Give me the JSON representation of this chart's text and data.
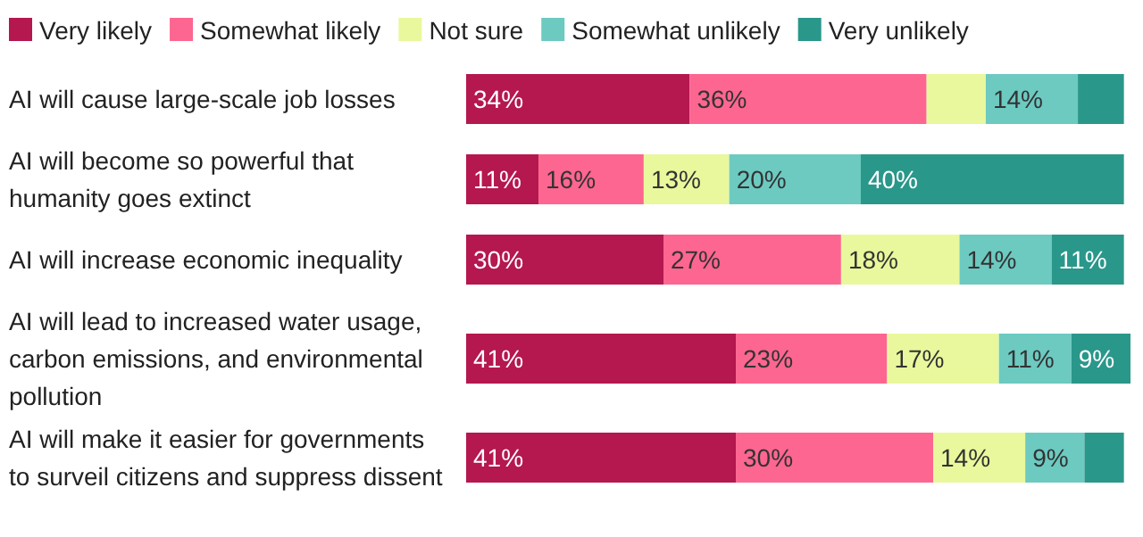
{
  "chart_data": {
    "type": "bar",
    "orientation": "horizontal",
    "stacked": true,
    "categories": [
      "AI will cause large-scale job losses",
      "AI will become so powerful that humanity goes extinct",
      "AI will increase economic inequality",
      "AI will lead to increased water usage, carbon emissions, and environmental pollution",
      "AI will make it easier for governments to surveil citizens and suppress dissent"
    ],
    "series": [
      {
        "name": "Very likely",
        "color": "#b5174f",
        "values": [
          34,
          11,
          30,
          41,
          41
        ],
        "value_labels": [
          "34%",
          "11%",
          "30%",
          "41%",
          "41%"
        ]
      },
      {
        "name": "Somewhat likely",
        "color": "#fd6690",
        "values": [
          36,
          16,
          27,
          23,
          30
        ],
        "value_labels": [
          "36%",
          "16%",
          "27%",
          "23%",
          "30%"
        ]
      },
      {
        "name": "Not sure",
        "color": "#e9f89c",
        "values": [
          9,
          13,
          18,
          17,
          14
        ],
        "value_labels": [
          null,
          "13%",
          "18%",
          "17%",
          "14%"
        ]
      },
      {
        "name": "Somewhat unlikely",
        "color": "#6ccac1",
        "values": [
          14,
          20,
          14,
          11,
          9
        ],
        "value_labels": [
          "14%",
          "20%",
          "14%",
          "11%",
          "9%"
        ]
      },
      {
        "name": "Very unlikely",
        "color": "#2a978b",
        "values": [
          7,
          40,
          11,
          9,
          6
        ],
        "value_labels": [
          null,
          "40%",
          "11%",
          "9%",
          null
        ]
      }
    ],
    "xlim": [
      0,
      101
    ],
    "tick_labels": "y",
    "legend": "top left"
  }
}
